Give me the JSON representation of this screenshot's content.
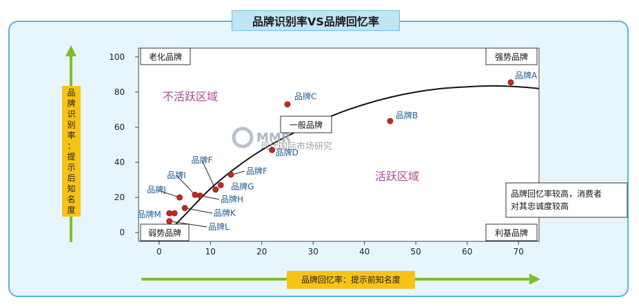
{
  "chart_data": {
    "type": "scatter",
    "title": "品牌识别率VS品牌回忆率",
    "xlabel": "品牌回忆率：提示前知名度",
    "ylabel": "品牌识别率：提示后知名度",
    "xlim": [
      -4,
      74
    ],
    "ylim": [
      -5,
      105
    ],
    "x_ticks": [
      0,
      10,
      20,
      30,
      40,
      50,
      60,
      70
    ],
    "y_ticks": [
      0,
      20,
      40,
      60,
      80,
      100
    ],
    "grid": false,
    "points": [
      {
        "label": "品牌A",
        "x": 68.5,
        "y": 85.5
      },
      {
        "label": "品牌B",
        "x": 45,
        "y": 63.5
      },
      {
        "label": "品牌C",
        "x": 25,
        "y": 73
      },
      {
        "label": "品牌D",
        "x": 22,
        "y": 47
      },
      {
        "label": "品牌F",
        "x": 11,
        "y": 24.5
      },
      {
        "label": "品牌F",
        "x": 14,
        "y": 33
      },
      {
        "label": "品牌G",
        "x": 12,
        "y": 27
      },
      {
        "label": "品牌H",
        "x": 8,
        "y": 21
      },
      {
        "label": "品牌I",
        "x": 7,
        "y": 21.5
      },
      {
        "label": "品牌J",
        "x": 4,
        "y": 20
      },
      {
        "label": "品牌K",
        "x": 5,
        "y": 14
      },
      {
        "label": "品牌L",
        "x": 2,
        "y": 6.5
      },
      {
        "label": "品牌M",
        "x": 2,
        "y": 11
      },
      {
        "label": "",
        "x": 3,
        "y": 11
      }
    ],
    "trend_curve": [
      {
        "x": 0,
        "y": -5
      },
      {
        "x": 5,
        "y": 10
      },
      {
        "x": 10,
        "y": 25
      },
      {
        "x": 15,
        "y": 37
      },
      {
        "x": 20,
        "y": 47
      },
      {
        "x": 25,
        "y": 55
      },
      {
        "x": 30,
        "y": 62
      },
      {
        "x": 35,
        "y": 68
      },
      {
        "x": 40,
        "y": 73
      },
      {
        "x": 45,
        "y": 77
      },
      {
        "x": 50,
        "y": 80
      },
      {
        "x": 55,
        "y": 82
      },
      {
        "x": 60,
        "y": 83
      },
      {
        "x": 65,
        "y": 83.5
      },
      {
        "x": 70,
        "y": 83
      },
      {
        "x": 74,
        "y": 82
      }
    ],
    "quadrant_labels": {
      "top_left": "老化品牌",
      "top_right": "强势品牌",
      "bottom_left": "弱势品牌",
      "bottom_right": "利基品牌",
      "center": "一般品牌"
    },
    "regions": {
      "inactive": "不活跃区域",
      "active": "活跃区域"
    },
    "note_lines": [
      "品牌回忆率较高，消费者",
      "对其忠诚度较高"
    ],
    "colors": {
      "point": "#c8281e",
      "point_label": "#1d5a96",
      "region": "#b0479b",
      "arrow": "#7cbf2b",
      "label_box": "#f7c316",
      "panel": "#e7f6fd",
      "panel_border": "#55b4e0"
    }
  },
  "watermark": {
    "logo": "MMR",
    "text": "现代国际市场研究"
  }
}
